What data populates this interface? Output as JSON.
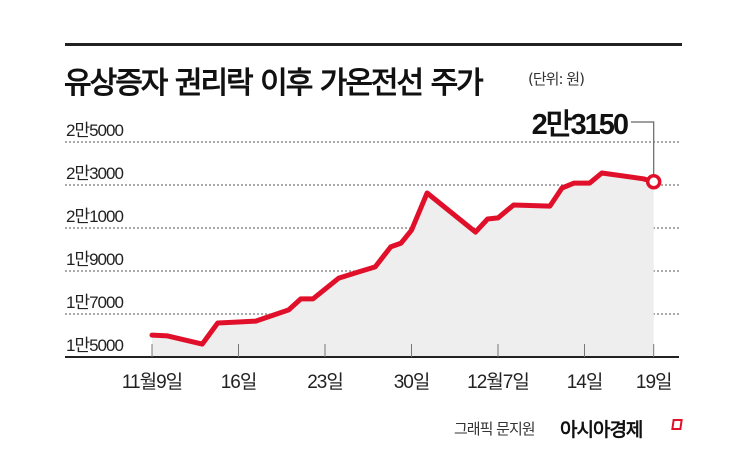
{
  "header": {
    "title": "유상증자 권리락 이후 가온전선 주가",
    "unit": "(단위: 원)"
  },
  "footer": {
    "credit": "그래픽 문지원",
    "brand": "아시아경제"
  },
  "colors": {
    "line": "#e0102a",
    "fill": "#eeeeee",
    "grid": "#555555",
    "axis": "#222222"
  },
  "chart_data": {
    "type": "area",
    "title": "유상증자 권리락 이후 가온전선 주가",
    "subtitle": "(단위: 원)",
    "xlabel": "",
    "ylabel": "",
    "ylim": [
      15000,
      25000
    ],
    "grid": true,
    "legend": "none",
    "y_ticks": [
      {
        "value": 25000,
        "label": "2만5000"
      },
      {
        "value": 23000,
        "label": "2만3000"
      },
      {
        "value": 21000,
        "label": "2만1000"
      },
      {
        "value": 19000,
        "label": "1만9000"
      },
      {
        "value": 17000,
        "label": "1만7000"
      },
      {
        "value": 15000,
        "label": "1만5000"
      }
    ],
    "x_ticks": [
      {
        "index": 0,
        "label": "11월9일"
      },
      {
        "index": 5,
        "label": "16일"
      },
      {
        "index": 10,
        "label": "23일"
      },
      {
        "index": 15,
        "label": "30일"
      },
      {
        "index": 20,
        "label": "12월7일"
      },
      {
        "index": 25,
        "label": "14일"
      },
      {
        "index": 29,
        "label": "19일"
      }
    ],
    "x": [
      0,
      0.9,
      2.9,
      3.8,
      5,
      6,
      7.9,
      8.6,
      9.3,
      10.8,
      11.9,
      12.9,
      13.8,
      14.4,
      15,
      15.9,
      18.7,
      19.4,
      20,
      20.9,
      23,
      23.7,
      24.4,
      25.3,
      26,
      28.4,
      29
    ],
    "series": [
      {
        "name": "가온전선 주가",
        "values": [
          16020,
          15980,
          15600,
          16580,
          16630,
          16670,
          17190,
          17700,
          17700,
          18670,
          18950,
          19190,
          20120,
          20300,
          20900,
          22630,
          20810,
          21420,
          21470,
          22070,
          22020,
          22860,
          23090,
          23090,
          23560,
          23290,
          23150
        ]
      }
    ],
    "annotations": [
      {
        "label": "2만3150",
        "target_index": 29,
        "value": 23150
      }
    ]
  }
}
